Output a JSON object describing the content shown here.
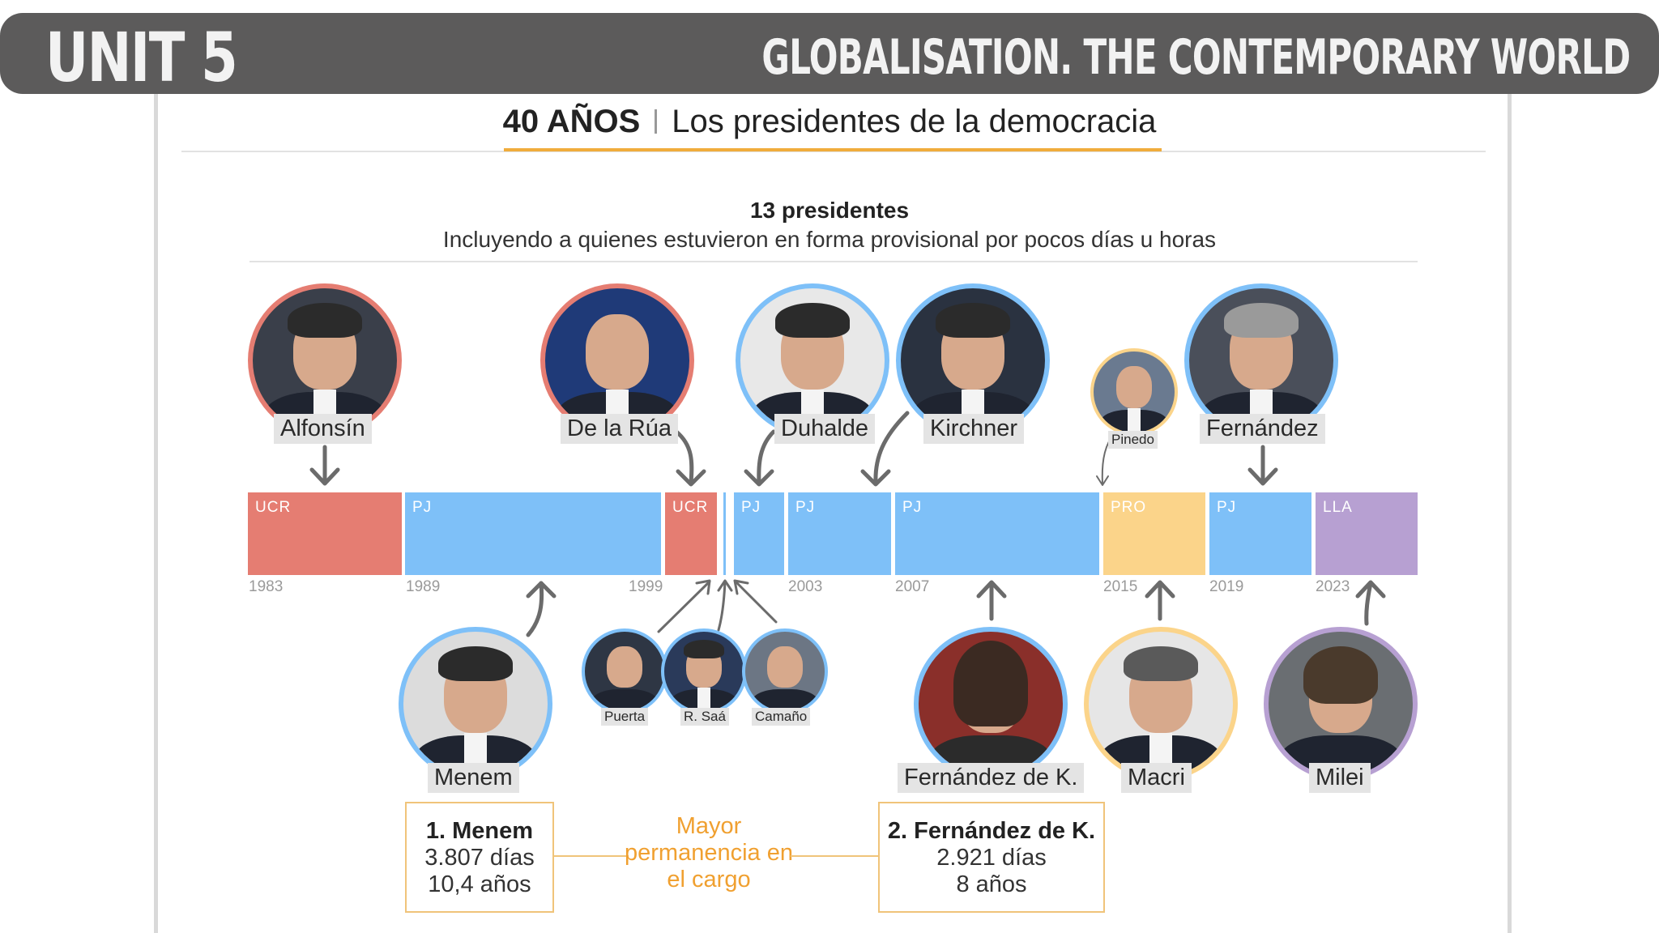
{
  "header": {
    "unit": "UNIT 5",
    "title": "GLOBALISATION. THE CONTEMPORARY WORLD"
  },
  "infographic": {
    "title_bold": "40 AÑOS",
    "title_rest": "Los presidentes de la democracia",
    "count_line": "13 presidentes",
    "subtitle": "Incluyendo a quienes estuvieron en forma provisional por pocos días u horas"
  },
  "segments": [
    {
      "party": "UCR",
      "color": "#e57d72"
    },
    {
      "party": "PJ",
      "color": "#7ec0f8"
    },
    {
      "party": "UCR",
      "color": "#e57d72"
    },
    {
      "party": "PJ",
      "color": "#7ec0f8"
    },
    {
      "party": "PJ",
      "color": "#7ec0f8"
    },
    {
      "party": "PJ",
      "color": "#7ec0f8"
    },
    {
      "party": "PRO",
      "color": "#fbd48a"
    },
    {
      "party": "PJ",
      "color": "#7ec0f8"
    },
    {
      "party": "LLA",
      "color": "#b7a0d2"
    }
  ],
  "years": [
    "1983",
    "1989",
    "1999",
    "2003",
    "2007",
    "2015",
    "2019",
    "2023"
  ],
  "presidents_top": [
    "Alfonsín",
    "De la Rúa",
    "Duhalde",
    "Kirchner",
    "Pinedo",
    "Fernández"
  ],
  "presidents_bottom": [
    "Menem",
    "Puerta",
    "R. Saá",
    "Camaño",
    "Fernández de K.",
    "Macri",
    "Milei"
  ],
  "longest": {
    "label": "Mayor permanencia en el cargo",
    "first": {
      "title": "1. Menem",
      "days": "3.807 días",
      "years": "10,4 años"
    },
    "second": {
      "title": "2. Fernández de K.",
      "days": "2.921 días",
      "years": "8 años"
    }
  },
  "colors": {
    "ucr": "#e57d72",
    "pj": "#7ec0f8",
    "pro": "#fbd48a",
    "lla": "#b7a0d2",
    "accent": "#f0ac3c"
  }
}
